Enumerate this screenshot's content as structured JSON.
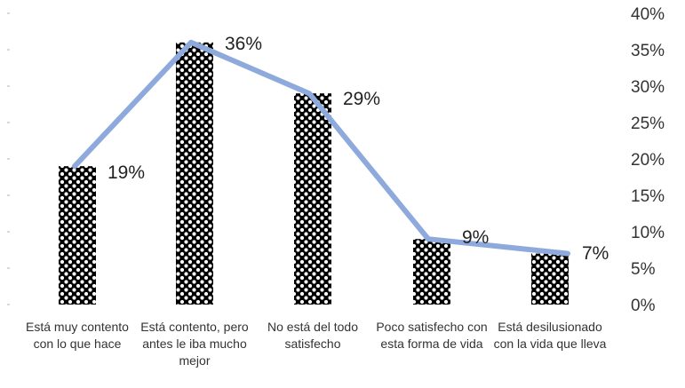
{
  "chart_data": {
    "type": "bar",
    "categories": [
      "Está muy contento con lo que hace",
      "Está contento, pero antes le iba mucho mejor",
      "No está del todo satisfecho",
      "Poco satisfecho con esta forma de vida",
      "Está desilusionado con la vida que lleva"
    ],
    "series": [
      {
        "type": "bar",
        "values": [
          19,
          36,
          29,
          9,
          7
        ]
      },
      {
        "type": "line",
        "values": [
          19,
          36,
          29,
          9,
          7
        ]
      }
    ],
    "data_labels": [
      "19%",
      "36%",
      "29%",
      "9%",
      "7%"
    ],
    "y_ticks": [
      "0%",
      "5%",
      "10%",
      "15%",
      "20%",
      "25%",
      "30%",
      "35%",
      "40%"
    ],
    "ylim": [
      0,
      40
    ],
    "y_axis_position": "right",
    "bar_fill": "black-white-dot-pattern",
    "line_color": "#8ea9db",
    "title": "",
    "xlabel": "",
    "ylabel": ""
  }
}
